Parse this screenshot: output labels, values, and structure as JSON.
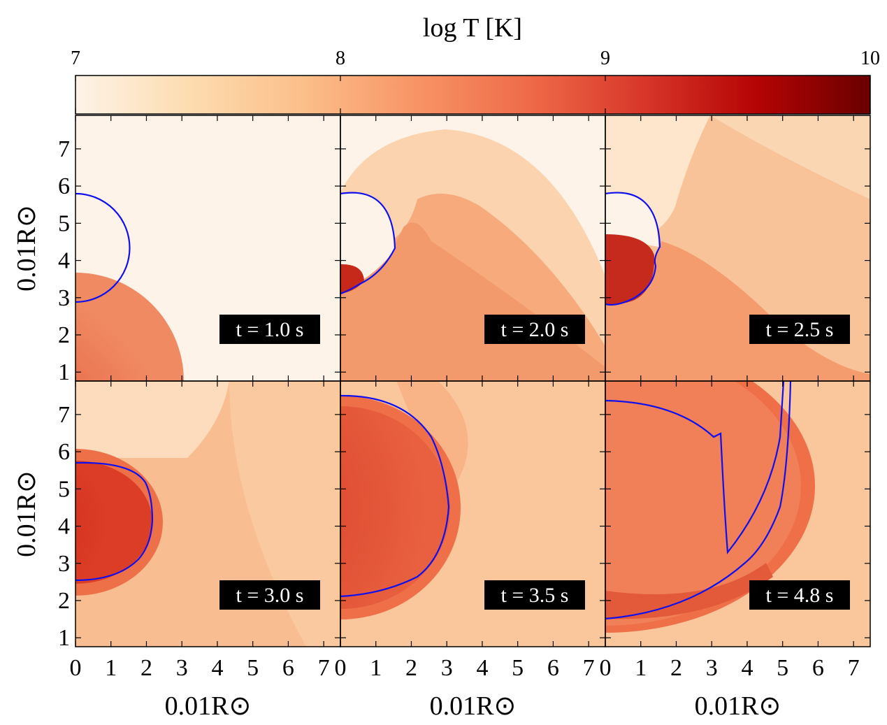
{
  "figure": {
    "colorbar": {
      "label": "log T [K]",
      "lim": [
        7,
        10
      ],
      "ticks": [
        7,
        8,
        9,
        10
      ],
      "colors": [
        "#fdf3e7",
        "#fddcb0",
        "#fbbf8a",
        "#f79466",
        "#ee6a48",
        "#d8372a",
        "#b50404",
        "#6a0000"
      ]
    },
    "xlabel": "0.01R⊙",
    "ylabel": "0.01R⊙",
    "xlim": [
      0,
      7.47
    ],
    "xticks": [
      0,
      1,
      2,
      3,
      4,
      5,
      6,
      7
    ],
    "ylim": [
      0.76,
      7.9
    ],
    "yticks": [
      1,
      2,
      3,
      4,
      5,
      6,
      7
    ],
    "panels": [
      {
        "label": "t = 1.0 s"
      },
      {
        "label": "t = 2.0 s"
      },
      {
        "label": "t = 2.5 s"
      },
      {
        "label": "t = 3.0 s"
      },
      {
        "label": "t = 3.5 s"
      },
      {
        "label": "t = 4.8 s"
      }
    ]
  }
}
